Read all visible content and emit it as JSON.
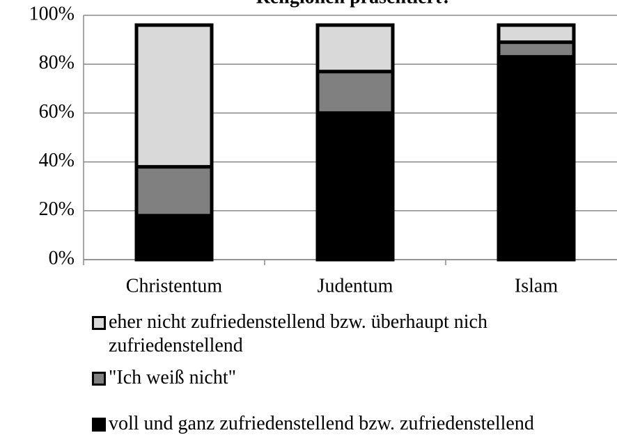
{
  "chart_data": {
    "type": "bar",
    "stacked": true,
    "title": "Religionen präsentiert?",
    "categories": [
      "Christentum",
      "Judentum",
      "Islam"
    ],
    "series": [
      {
        "name": "voll und ganz zufriedenstellend bzw. zufriedenstellend",
        "color": "#000000",
        "values": [
          18,
          60,
          83
        ]
      },
      {
        "name": "\"Ich weiß nicht\"",
        "color": "#808080",
        "values": [
          20,
          17,
          6
        ]
      },
      {
        "name": "eher nicht zufriedenstellend bzw. überhaupt nich zufriedenstellend",
        "color": "#d9d9d9",
        "values": [
          58,
          19,
          7
        ]
      }
    ],
    "ylim": [
      0,
      100
    ],
    "yticks": [
      {
        "value": 0,
        "label": "0%"
      },
      {
        "value": 20,
        "label": "20%"
      },
      {
        "value": 40,
        "label": "40%"
      },
      {
        "value": 60,
        "label": "60%"
      },
      {
        "value": 80,
        "label": "80%"
      },
      {
        "value": 100,
        "label": "100%"
      }
    ],
    "grid": true
  }
}
